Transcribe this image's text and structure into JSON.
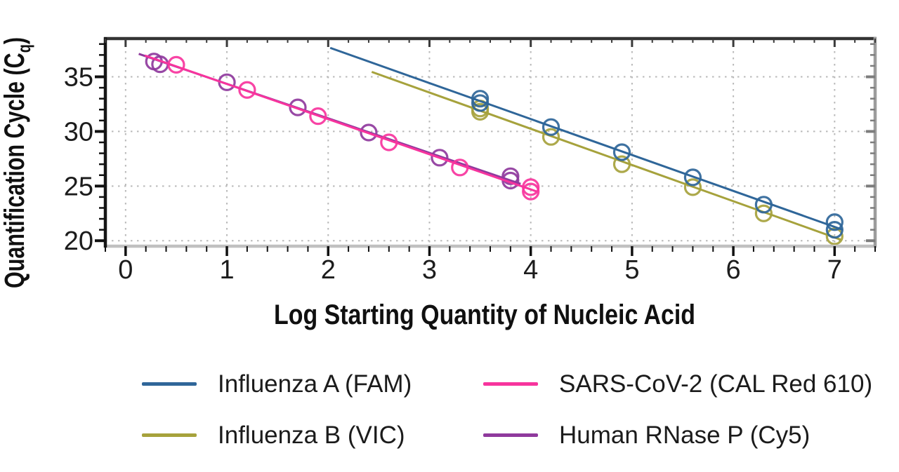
{
  "colors": {
    "background": "#ffffff",
    "grid": "#b9b9b9",
    "axis_left": "#161616",
    "axis_top": "#343434",
    "axis_right": "#9c9c9c",
    "axis_bottom": "#c0c0c0",
    "tick": "#111111",
    "text": "#1a1a1a"
  },
  "chart_data": {
    "type": "scatter",
    "title": "",
    "xlabel": "Log Starting Quantity of Nucleic Acid",
    "ylabel": "Quantification Cycle (Cq)",
    "ylabel_parts": {
      "main": "Quantification Cycle (C",
      "subscript": "q",
      "suffix": ")"
    },
    "xlim": [
      -0.2,
      7.4
    ],
    "ylim": [
      19.5,
      38.5
    ],
    "x_ticks": [
      "0",
      "1",
      "2",
      "3",
      "4",
      "5",
      "6",
      "7"
    ],
    "x_tick_values": [
      0,
      1,
      2,
      3,
      4,
      5,
      6,
      7
    ],
    "y_ticks": [
      "20",
      "25",
      "30",
      "35"
    ],
    "y_tick_values": [
      20,
      25,
      30,
      35
    ],
    "x_minor_tick_step": 0.2,
    "y_minor_tick_step": 1,
    "grid": "dotted",
    "legend_position": "bottom",
    "series": [
      {
        "name": "Influenza A (FAM)",
        "color": "#2f6699",
        "marker": "open-circle",
        "points": [
          [
            3.5,
            33.0
          ],
          [
            3.5,
            32.6
          ],
          [
            4.2,
            30.4
          ],
          [
            4.9,
            28.1
          ],
          [
            5.6,
            25.8
          ],
          [
            6.3,
            23.3
          ],
          [
            7.0,
            21.7
          ],
          [
            7.0,
            21.0
          ]
        ],
        "trendline": {
          "x1": 2.02,
          "y1": 37.65,
          "x2": 7.08,
          "y2": 21.0
        }
      },
      {
        "name": "Influenza B (VIC)",
        "color": "#a6a23c",
        "marker": "open-circle",
        "points": [
          [
            3.5,
            32.1
          ],
          [
            3.5,
            31.8
          ],
          [
            4.2,
            29.5
          ],
          [
            4.9,
            27.0
          ],
          [
            5.6,
            24.9
          ],
          [
            6.3,
            22.5
          ],
          [
            7.0,
            20.4
          ]
        ],
        "trendline": {
          "x1": 2.43,
          "y1": 35.45,
          "x2": 7.06,
          "y2": 20.1
        }
      },
      {
        "name": "SARS-CoV-2 (CAL Red 610)",
        "color": "#f7349d",
        "marker": "open-circle",
        "points": [
          [
            0.5,
            36.1
          ],
          [
            1.2,
            33.8
          ],
          [
            1.9,
            31.4
          ],
          [
            2.6,
            29.0
          ],
          [
            3.3,
            26.7
          ],
          [
            4.0,
            24.9
          ],
          [
            4.0,
            24.5
          ]
        ],
        "trendline": {
          "x1": 0.19,
          "y1": 36.95,
          "x2": 4.06,
          "y2": 24.5
        }
      },
      {
        "name": "Human RNase P (Cy5)",
        "color": "#8f3a9d",
        "marker": "open-circle",
        "points": [
          [
            0.28,
            36.4
          ],
          [
            0.34,
            36.15
          ],
          [
            1.0,
            34.5
          ],
          [
            1.7,
            32.2
          ],
          [
            2.4,
            29.9
          ],
          [
            3.1,
            27.6
          ],
          [
            3.8,
            25.9
          ],
          [
            3.8,
            25.5
          ]
        ],
        "trendline": {
          "x1": 0.13,
          "y1": 37.1,
          "x2": 3.9,
          "y2": 25.2
        }
      }
    ]
  }
}
